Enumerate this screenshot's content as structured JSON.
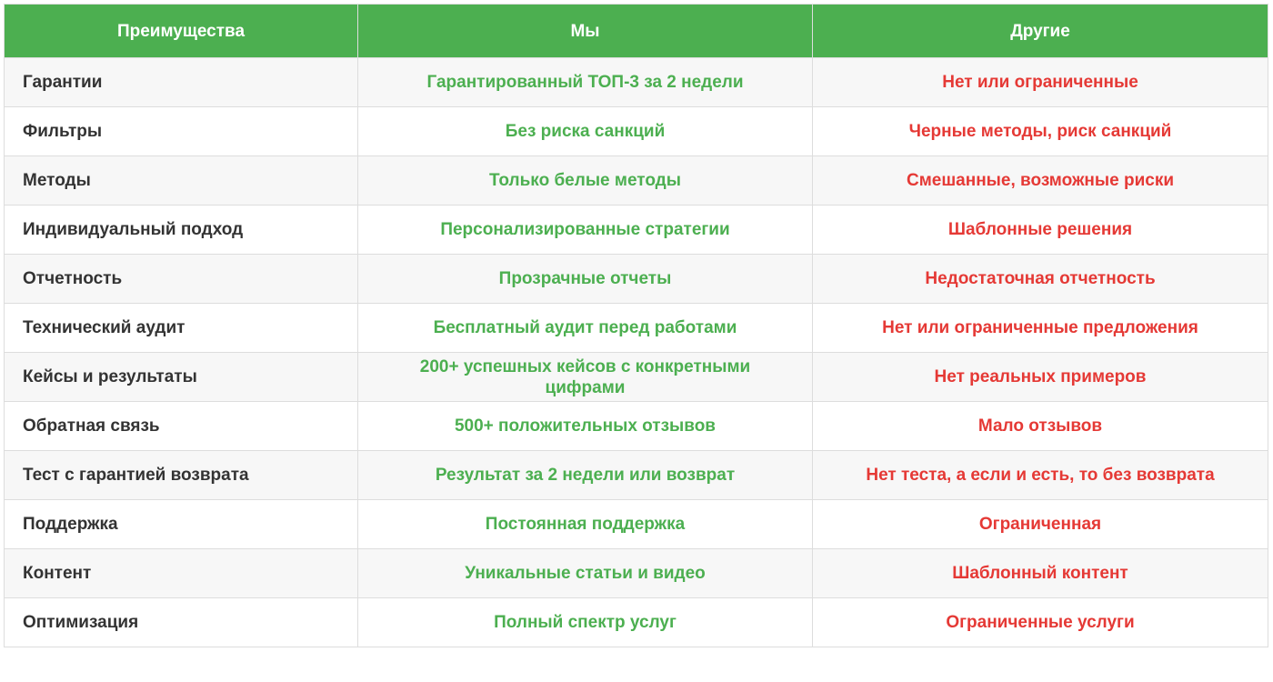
{
  "table": {
    "header": [
      "Преимущества",
      "Мы",
      "Другие"
    ],
    "rows": [
      [
        "Гарантии",
        "Гарантированный ТОП-3 за 2 недели",
        "Нет или ограниченные"
      ],
      [
        "Фильтры",
        "Без риска санкций",
        "Черные методы, риск санкций"
      ],
      [
        "Методы",
        "Только белые методы",
        "Смешанные, возможные риски"
      ],
      [
        "Индивидуальный подход",
        "Персонализированные стратегии",
        "Шаблонные решения"
      ],
      [
        "Отчетность",
        "Прозрачные отчеты",
        "Недостаточная отчетность"
      ],
      [
        "Технический аудит",
        "Бесплатный аудит перед работами",
        "Нет или ограниченные предложения"
      ],
      [
        "Кейсы и результаты",
        "200+ успешных кейсов с конкретными цифрами",
        "Нет реальных примеров"
      ],
      [
        "Обратная связь",
        "500+ положительных отзывов",
        "Мало отзывов"
      ],
      [
        "Тест с гарантией возврата",
        "Результат за 2 недели или возврат",
        "Нет теста, а если и есть, то без возврата"
      ],
      [
        "Поддержка",
        "Постоянная поддержка",
        "Ограниченная"
      ],
      [
        "Контент",
        "Уникальные статьи и видео",
        "Шаблонный контент"
      ],
      [
        "Оптимизация",
        "Полный спектр услуг",
        "Ограниченные услуги"
      ]
    ]
  }
}
